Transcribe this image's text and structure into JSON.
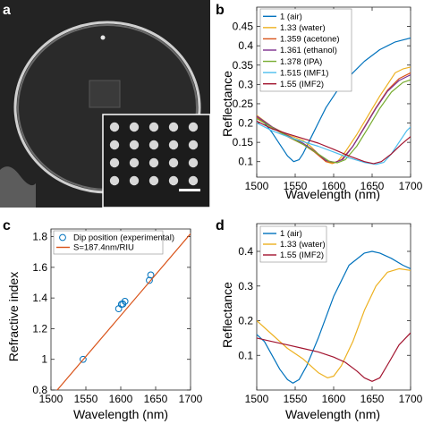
{
  "figure": {
    "panels": [
      {
        "letter": "a"
      },
      {
        "letter": "b"
      },
      {
        "letter": "c"
      },
      {
        "letter": "d"
      }
    ]
  },
  "colors": {
    "air": "#0072BD",
    "water": "#EDB120",
    "acetone": "#D95319",
    "ethanol": "#7E2F8E",
    "ipa": "#77AC30",
    "imf1": "#4DBEEE",
    "imf2": "#A2142F",
    "fit_line": "#D95319",
    "exp_marker": "#0072BD"
  },
  "chart_data": [
    {
      "panel": "b",
      "type": "line",
      "xlabel": "Wavelength (nm)",
      "ylabel": "Reflectance",
      "xlim": [
        1500,
        1700
      ],
      "ylim": [
        0.06,
        0.5
      ],
      "xticks": [
        1500,
        1550,
        1600,
        1650,
        1700
      ],
      "yticks": [
        0.1,
        0.15,
        0.2,
        0.25,
        0.3,
        0.35,
        0.4,
        0.45
      ],
      "grid": false,
      "legend": "top-left",
      "series": [
        {
          "name": "1 (air)",
          "color_key": "air",
          "x": [
            1500,
            1510,
            1520,
            1530,
            1540,
            1548,
            1555,
            1560,
            1570,
            1580,
            1590,
            1600,
            1610,
            1620,
            1630,
            1640,
            1650,
            1660,
            1670,
            1680,
            1690,
            1700
          ],
          "y": [
            0.215,
            0.2,
            0.175,
            0.145,
            0.115,
            0.1,
            0.105,
            0.12,
            0.16,
            0.2,
            0.24,
            0.27,
            0.3,
            0.32,
            0.34,
            0.36,
            0.375,
            0.39,
            0.4,
            0.41,
            0.415,
            0.42
          ]
        },
        {
          "name": "1.33 (water)",
          "color_key": "water",
          "x": [
            1500,
            1520,
            1540,
            1560,
            1570,
            1580,
            1590,
            1598,
            1605,
            1615,
            1630,
            1645,
            1660,
            1670,
            1680,
            1690,
            1700
          ],
          "y": [
            0.22,
            0.19,
            0.17,
            0.155,
            0.14,
            0.12,
            0.1,
            0.095,
            0.1,
            0.125,
            0.17,
            0.22,
            0.27,
            0.3,
            0.33,
            0.34,
            0.345
          ]
        },
        {
          "name": "1.359 (acetone)",
          "color_key": "acetone",
          "x": [
            1500,
            1520,
            1540,
            1560,
            1575,
            1590,
            1600,
            1610,
            1625,
            1640,
            1655,
            1670,
            1685,
            1700
          ],
          "y": [
            0.215,
            0.188,
            0.165,
            0.145,
            0.125,
            0.1,
            0.097,
            0.105,
            0.14,
            0.19,
            0.24,
            0.285,
            0.315,
            0.33
          ]
        },
        {
          "name": "1.361 (ethanol)",
          "color_key": "ethanol",
          "x": [
            1500,
            1520,
            1540,
            1560,
            1575,
            1590,
            1602,
            1612,
            1625,
            1640,
            1655,
            1670,
            1685,
            1700
          ],
          "y": [
            0.218,
            0.19,
            0.168,
            0.148,
            0.128,
            0.103,
            0.098,
            0.106,
            0.14,
            0.188,
            0.238,
            0.282,
            0.31,
            0.325
          ]
        },
        {
          "name": "1.378 (IPA)",
          "color_key": "ipa",
          "x": [
            1500,
            1520,
            1540,
            1560,
            1580,
            1595,
            1605,
            1615,
            1630,
            1645,
            1660,
            1675,
            1690,
            1700
          ],
          "y": [
            0.212,
            0.188,
            0.166,
            0.145,
            0.12,
            0.1,
            0.097,
            0.105,
            0.14,
            0.188,
            0.238,
            0.28,
            0.305,
            0.312
          ]
        },
        {
          "name": "1.515 (IMF1)",
          "color_key": "imf1",
          "x": [
            1500,
            1520,
            1540,
            1560,
            1580,
            1600,
            1620,
            1640,
            1655,
            1665,
            1675,
            1685,
            1695,
            1700
          ],
          "y": [
            0.2,
            0.18,
            0.165,
            0.152,
            0.14,
            0.125,
            0.11,
            0.098,
            0.093,
            0.098,
            0.12,
            0.15,
            0.18,
            0.19
          ]
        },
        {
          "name": "1.55 (IMF2)",
          "color_key": "imf2",
          "x": [
            1500,
            1520,
            1540,
            1560,
            1580,
            1600,
            1620,
            1640,
            1652,
            1662,
            1675,
            1688,
            1700
          ],
          "y": [
            0.205,
            0.185,
            0.172,
            0.16,
            0.148,
            0.132,
            0.115,
            0.1,
            0.095,
            0.1,
            0.12,
            0.145,
            0.165
          ]
        }
      ]
    },
    {
      "panel": "c",
      "type": "scatter",
      "xlabel": "Wavelength (nm)",
      "ylabel": "Refractive index",
      "xlim": [
        1500,
        1700
      ],
      "ylim": [
        0.8,
        1.85
      ],
      "xticks": [
        1500,
        1550,
        1600,
        1650,
        1700
      ],
      "yticks": [
        0.8,
        1,
        1.2,
        1.4,
        1.6,
        1.8
      ],
      "grid": false,
      "legend": "top-left",
      "series": [
        {
          "name": "Dip position (experimental)",
          "color_key": "exp_marker",
          "marker": "open-circle",
          "points": [
            [
              1546,
              1.0
            ],
            [
              1597,
              1.33
            ],
            [
              1601,
              1.359
            ],
            [
              1603,
              1.361
            ],
            [
              1606,
              1.378
            ],
            [
              1641,
              1.515
            ],
            [
              1643,
              1.55
            ]
          ]
        },
        {
          "name": "S=187.4nm/RIU",
          "color_key": "fit_line",
          "points": [
            [
              1500,
              0.752
            ],
            [
              1700,
              1.819
            ]
          ]
        }
      ]
    },
    {
      "panel": "d",
      "type": "line",
      "xlabel": "Wavelength (nm)",
      "ylabel": "Reflectance",
      "xlim": [
        1500,
        1700
      ],
      "ylim": [
        0.0,
        0.48
      ],
      "xticks": [
        1500,
        1550,
        1600,
        1650,
        1700
      ],
      "yticks": [
        0.1,
        0.2,
        0.3,
        0.4
      ],
      "grid": false,
      "legend": "top-left",
      "series": [
        {
          "name": "1 (air)",
          "color_key": "air",
          "x": [
            1500,
            1510,
            1520,
            1530,
            1540,
            1547,
            1555,
            1565,
            1580,
            1600,
            1620,
            1640,
            1650,
            1660,
            1675,
            1690,
            1700
          ],
          "y": [
            0.16,
            0.14,
            0.1,
            0.06,
            0.03,
            0.02,
            0.03,
            0.07,
            0.15,
            0.27,
            0.36,
            0.395,
            0.4,
            0.395,
            0.38,
            0.36,
            0.35
          ]
        },
        {
          "name": "1.33 (water)",
          "color_key": "water",
          "x": [
            1500,
            1520,
            1540,
            1560,
            1580,
            1592,
            1600,
            1610,
            1625,
            1640,
            1655,
            1670,
            1685,
            1700
          ],
          "y": [
            0.2,
            0.16,
            0.12,
            0.09,
            0.05,
            0.035,
            0.04,
            0.07,
            0.14,
            0.23,
            0.3,
            0.34,
            0.35,
            0.345
          ]
        },
        {
          "name": "1.55 (IMF2)",
          "color_key": "imf2",
          "x": [
            1500,
            1520,
            1540,
            1560,
            1580,
            1600,
            1615,
            1630,
            1640,
            1650,
            1660,
            1672,
            1685,
            1700
          ],
          "y": [
            0.15,
            0.14,
            0.13,
            0.12,
            0.11,
            0.095,
            0.08,
            0.055,
            0.035,
            0.025,
            0.035,
            0.08,
            0.13,
            0.165
          ]
        }
      ]
    }
  ]
}
